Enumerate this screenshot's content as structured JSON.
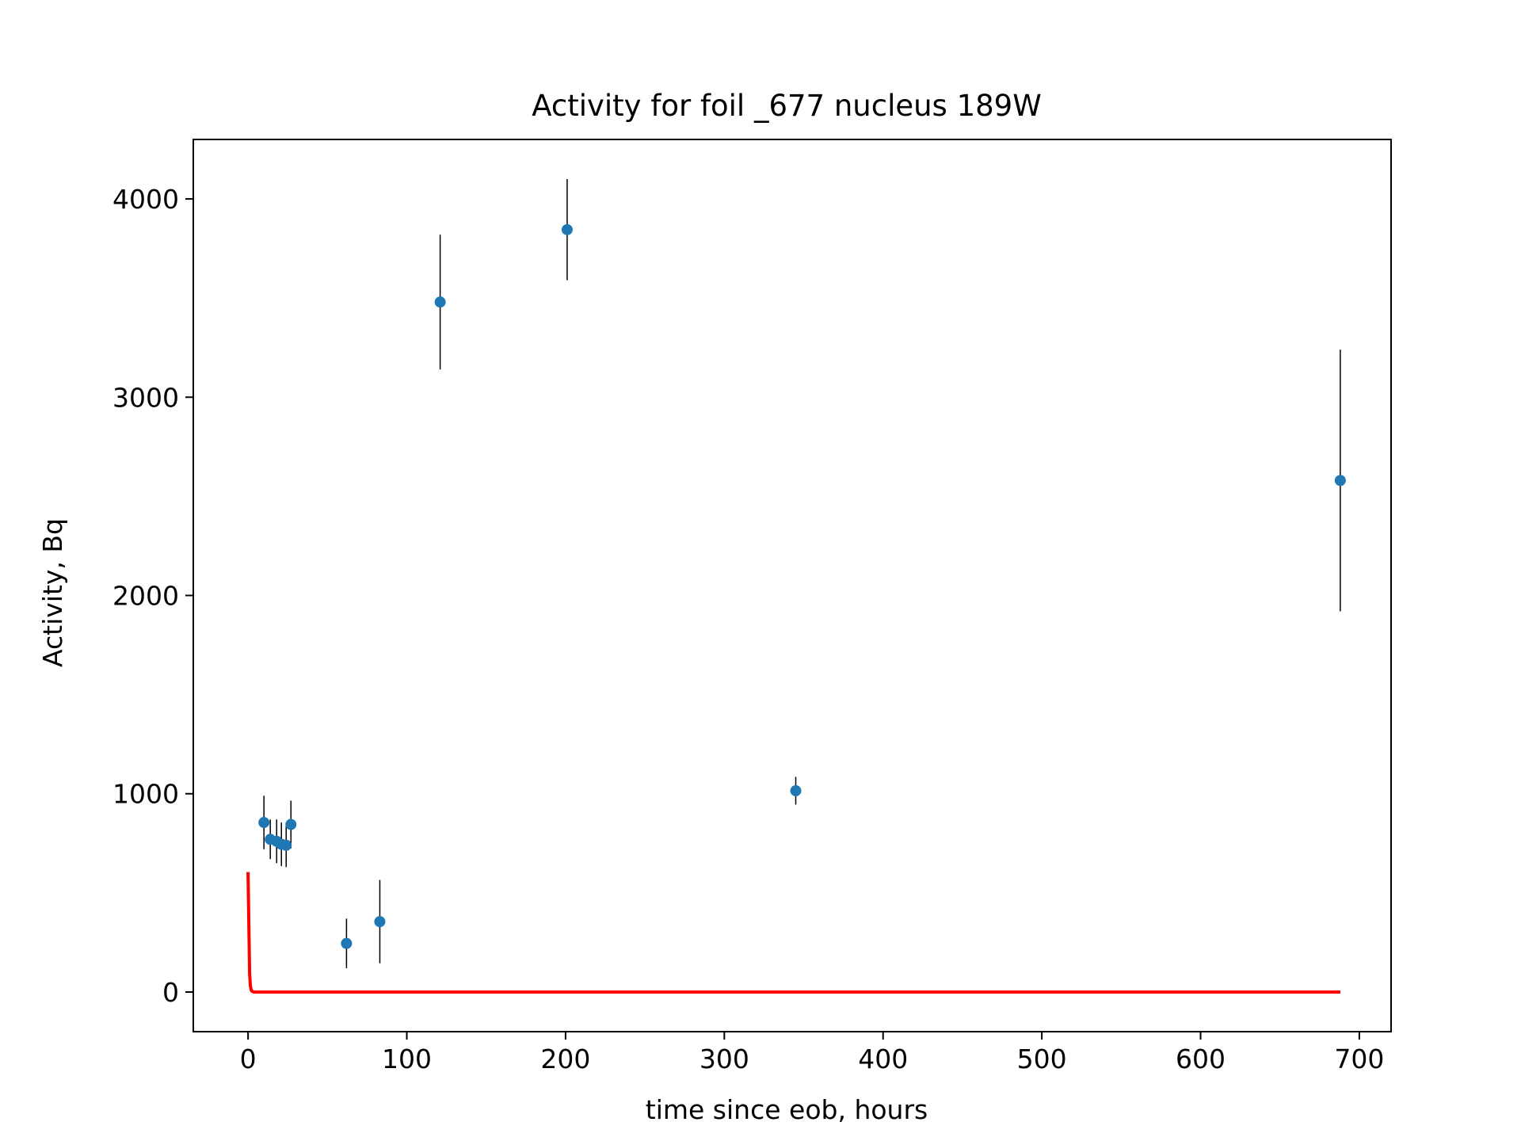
{
  "chart_data": {
    "type": "scatter",
    "title": "Activity for foil _677 nucleus 189W",
    "xlabel": "time since eob, hours",
    "ylabel": "Activity, Bq",
    "xlim": [
      -34.5,
      720
    ],
    "ylim": [
      -200,
      4300
    ],
    "xticks": [
      0,
      100,
      200,
      300,
      400,
      500,
      600,
      700
    ],
    "yticks": [
      0,
      1000,
      2000,
      3000,
      4000
    ],
    "xtick_labels": [
      "0",
      "100",
      "200",
      "300",
      "400",
      "500",
      "600",
      "700"
    ],
    "ytick_labels": [
      "0",
      "1000",
      "2000",
      "3000",
      "4000"
    ],
    "grid": false,
    "colors": {
      "points": "#1f77b4",
      "errorbars": "#000000",
      "fit": "#ff0000"
    },
    "points": [
      {
        "x": 10,
        "y": 855,
        "yerr": 135
      },
      {
        "x": 14,
        "y": 770,
        "yerr": 100
      },
      {
        "x": 18,
        "y": 760,
        "yerr": 110
      },
      {
        "x": 21,
        "y": 745,
        "yerr": 110
      },
      {
        "x": 24,
        "y": 740,
        "yerr": 110
      },
      {
        "x": 27,
        "y": 845,
        "yerr": 120
      },
      {
        "x": 62,
        "y": 245,
        "yerr": 125
      },
      {
        "x": 83,
        "y": 355,
        "yerr": 210
      },
      {
        "x": 121,
        "y": 3480,
        "yerr": 340
      },
      {
        "x": 201,
        "y": 3845,
        "yerr": 255
      },
      {
        "x": 345,
        "y": 1015,
        "yerr": 70
      },
      {
        "x": 688,
        "y": 2580,
        "yerr": 660
      }
    ],
    "fit_curve": {
      "x": [
        0,
        0.5,
        1,
        1.5,
        2,
        2.5,
        3,
        4,
        5,
        688
      ],
      "y": [
        605,
        350,
        90,
        30,
        10,
        4,
        2,
        0,
        0,
        0
      ]
    }
  }
}
